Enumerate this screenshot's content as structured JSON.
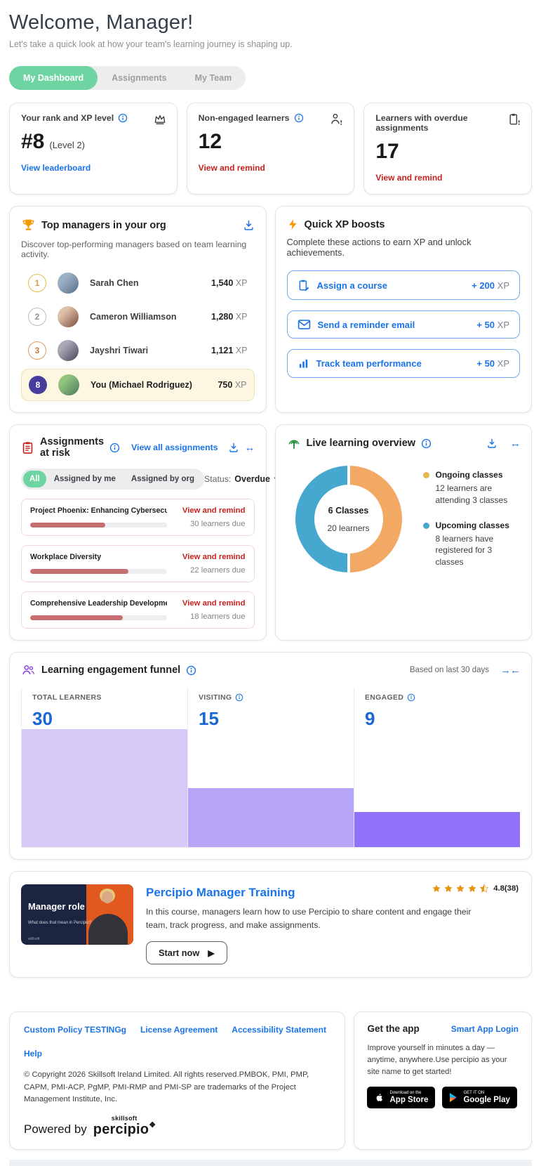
{
  "header": {
    "title": "Welcome, Manager!",
    "subtitle": "Let's take a quick look at how your team's learning journey is shaping up."
  },
  "tabs": {
    "items": [
      {
        "label": "My Dashboard",
        "active": true
      },
      {
        "label": "Assignments",
        "active": false
      },
      {
        "label": "My Team",
        "active": false
      }
    ]
  },
  "stat_cards": {
    "rank": {
      "title": "Your rank and XP level",
      "value": "#8",
      "suffix": "(Level 2)",
      "link": "View leaderboard"
    },
    "non_engaged": {
      "title": "Non-engaged learners",
      "value": "12",
      "link": "View and remind"
    },
    "overdue": {
      "title": "Learners with overdue assignments",
      "value": "17",
      "link": "View and remind"
    }
  },
  "top_managers": {
    "title": "Top managers in your org",
    "subtitle": "Discover top-performing managers based on team learning activity.",
    "xp_unit": "XP",
    "rows": [
      {
        "rank": "1",
        "name": "Sarah Chen",
        "xp": "1,540"
      },
      {
        "rank": "2",
        "name": "Cameron Williamson",
        "xp": "1,280"
      },
      {
        "rank": "3",
        "name": "Jayshri Tiwari",
        "xp": "1,121"
      },
      {
        "rank": "8",
        "name": "You (Michael Rodriguez)",
        "xp": "750"
      }
    ]
  },
  "xp_boosts": {
    "title": "Quick XP boosts",
    "subtitle": "Complete these actions to earn XP and unlock achievements.",
    "xp_unit": "XP",
    "actions": [
      {
        "label": "Assign a course",
        "xp": "+ 200"
      },
      {
        "label": "Send a reminder email",
        "xp": "+ 50"
      },
      {
        "label": "Track team performance",
        "xp": "+ 50"
      }
    ]
  },
  "assignments": {
    "title": "Assignments at risk",
    "view_all": "View all assignments",
    "filters": {
      "all": "All",
      "by_me": "Assigned by me",
      "by_org": "Assigned by org"
    },
    "status_label": "Status:",
    "status_value": "Overdue",
    "items": [
      {
        "name": "Project Phoenix: Enhancing Cybersecurity Protocols",
        "progress": 55,
        "action": "View and remind",
        "due": "30 learners due"
      },
      {
        "name": "Workplace Diversity",
        "progress": 72,
        "action": "View and remind",
        "due": "22 learners due"
      },
      {
        "name": "Comprehensive Leadership Development",
        "progress": 68,
        "action": "View and remind",
        "due": "18 learners due"
      }
    ]
  },
  "live_learning": {
    "title": "Live learning overview",
    "center_title": "6 Classes",
    "center_subtitle": "20 learners",
    "legend": [
      {
        "label": "Ongoing classes",
        "desc": "12 learners are attending 3 classes",
        "dot": "#E5B94E"
      },
      {
        "label": "Upcoming classes",
        "desc": "8 learners have registered for 3 classes",
        "dot": "#47A8CF"
      }
    ]
  },
  "funnel": {
    "title": "Learning engagement funnel",
    "note": "Based on last 30 days",
    "columns": [
      {
        "label": "TOTAL LEARNERS",
        "value": "30"
      },
      {
        "label": "VISITING",
        "value": "15"
      },
      {
        "label": "ENGAGED",
        "value": "9"
      }
    ]
  },
  "course": {
    "title": "Percipio Manager Training",
    "description": "In this course, managers learn how to use Percipio to share content and engage their team, track progress, and make assignments.",
    "button": "Start now",
    "rating": "4.8(38)",
    "thumb": {
      "heading": "Manager role",
      "subheading": "What does that mean in Percipio?",
      "brand": "skillsoft"
    }
  },
  "footer": {
    "links": [
      "Custom Policy TESTINGg",
      "License Agreement",
      "Accessibility Statement",
      "Help"
    ],
    "copyright": "© Copyright 2026 Skillsoft Ireland Limited. All rights reserved.PMBOK, PMI, PMP, CAPM, PMI-ACP, PgMP, PMI-RMP and PMI-SP are trademarks of the Project Management Institute, Inc.",
    "powered_by": "Powered by",
    "logo": {
      "top": "skillsoft",
      "main": "percipio",
      "mark": "❖"
    },
    "app": {
      "title": "Get the app",
      "login_link": "Smart App Login",
      "desc": "Improve yourself in minutes a day — anytime, anywhere.Use percipio as your site name to get started!",
      "appstore": {
        "line1": "Download on the",
        "line2": "App Store"
      },
      "play": {
        "line1": "GET IT ON",
        "line2": "Google Play"
      }
    }
  },
  "chart_data": [
    {
      "type": "pie",
      "donut": true,
      "title": "Live learning overview",
      "labels": [
        "Ongoing classes",
        "Upcoming classes"
      ],
      "values": [
        3,
        3
      ],
      "learners_per_segment": [
        12,
        8
      ],
      "colors": [
        "#F2A964",
        "#47A8CF"
      ],
      "center_label": "6 Classes",
      "center_sublabel": "20 learners",
      "legend_position": "right"
    },
    {
      "type": "bar",
      "title": "Learning engagement funnel",
      "categories": [
        "TOTAL LEARNERS",
        "VISITING",
        "ENGAGED"
      ],
      "values": [
        30,
        15,
        9
      ],
      "colors": [
        "#D6C9F8",
        "#B7A6F7",
        "#9171F7"
      ],
      "ylim": [
        0,
        30
      ],
      "note": "Based on last 30 days",
      "grid": false
    }
  ]
}
